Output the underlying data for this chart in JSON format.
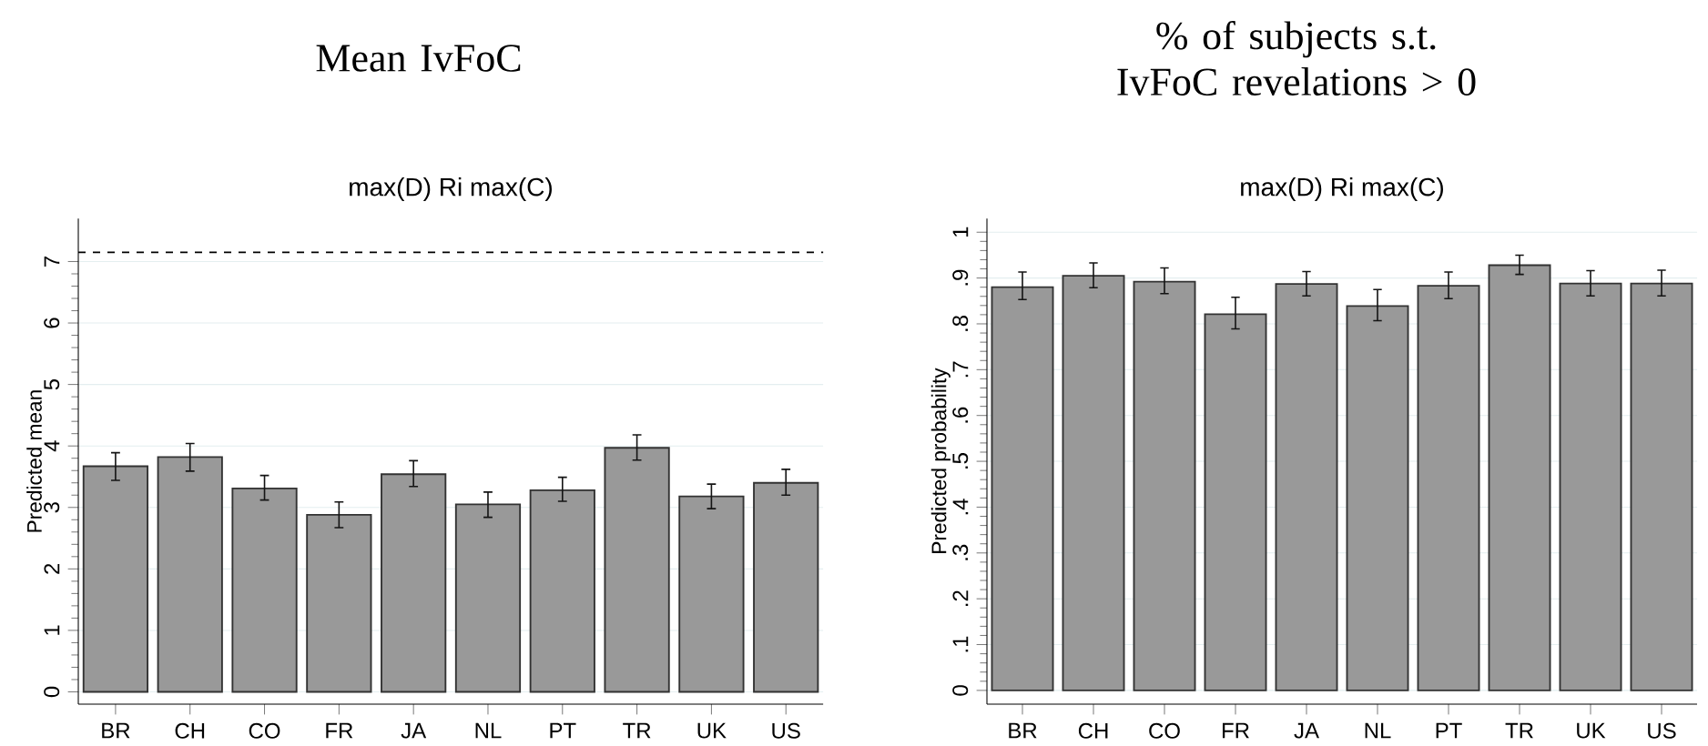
{
  "chart_data": [
    {
      "type": "bar",
      "title": "Mean IvFoC",
      "subtitle": "max(D) Ri max(C)",
      "ylabel": "Predicted mean",
      "categories": [
        "BR",
        "CH",
        "CO",
        "FR",
        "JA",
        "NL",
        "PT",
        "TR",
        "UK",
        "US"
      ],
      "values": [
        3.67,
        3.82,
        3.31,
        2.88,
        3.54,
        3.05,
        3.28,
        3.97,
        3.18,
        3.4
      ],
      "errors": [
        [
          3.44,
          3.89
        ],
        [
          3.59,
          4.04
        ],
        [
          3.12,
          3.52
        ],
        [
          2.67,
          3.09
        ],
        [
          3.34,
          3.76
        ],
        [
          2.84,
          3.25
        ],
        [
          3.1,
          3.49
        ],
        [
          3.77,
          4.18
        ],
        [
          2.98,
          3.38
        ],
        [
          3.2,
          3.62
        ]
      ],
      "color": "#999999",
      "ylim": [
        -0.2,
        7.7
      ],
      "yticks": [
        0,
        1,
        2,
        3,
        4,
        5,
        6,
        7
      ],
      "grid": "y",
      "ref_lines": [
        {
          "axis": "y",
          "value": 7.15,
          "color": "#000000",
          "line_style": "dashed"
        }
      ]
    },
    {
      "type": "bar",
      "title": "% of subjects s.t. IvFoC revelations > 0",
      "subtitle": "max(D) Ri max(C)",
      "ylabel": "Predicted probability",
      "categories": [
        "BR",
        "CH",
        "CO",
        "FR",
        "JA",
        "NL",
        "PT",
        "TR",
        "UK",
        "US"
      ],
      "values": [
        0.88,
        0.905,
        0.892,
        0.821,
        0.887,
        0.839,
        0.883,
        0.928,
        0.888,
        0.888
      ],
      "errors": [
        [
          0.853,
          0.913
        ],
        [
          0.879,
          0.933
        ],
        [
          0.866,
          0.922
        ],
        [
          0.789,
          0.858
        ],
        [
          0.861,
          0.914
        ],
        [
          0.807,
          0.875
        ],
        [
          0.855,
          0.913
        ],
        [
          0.908,
          0.95
        ],
        [
          0.861,
          0.916
        ],
        [
          0.861,
          0.917
        ]
      ],
      "color": "#999999",
      "ylim": [
        -0.03,
        1.03
      ],
      "yticks": [
        0,
        {
          "value": 0.1,
          "label": ".1"
        },
        {
          "value": 0.2,
          "label": ".2"
        },
        {
          "value": 0.3,
          "label": ".3"
        },
        {
          "value": 0.4,
          "label": ".4"
        },
        {
          "value": 0.5,
          "label": ".5"
        },
        {
          "value": 0.6,
          "label": ".6"
        },
        {
          "value": 0.7,
          "label": ".7"
        },
        {
          "value": 0.8,
          "label": ".8"
        },
        {
          "value": 0.9,
          "label": ".9"
        },
        1
      ],
      "grid": "y"
    }
  ]
}
